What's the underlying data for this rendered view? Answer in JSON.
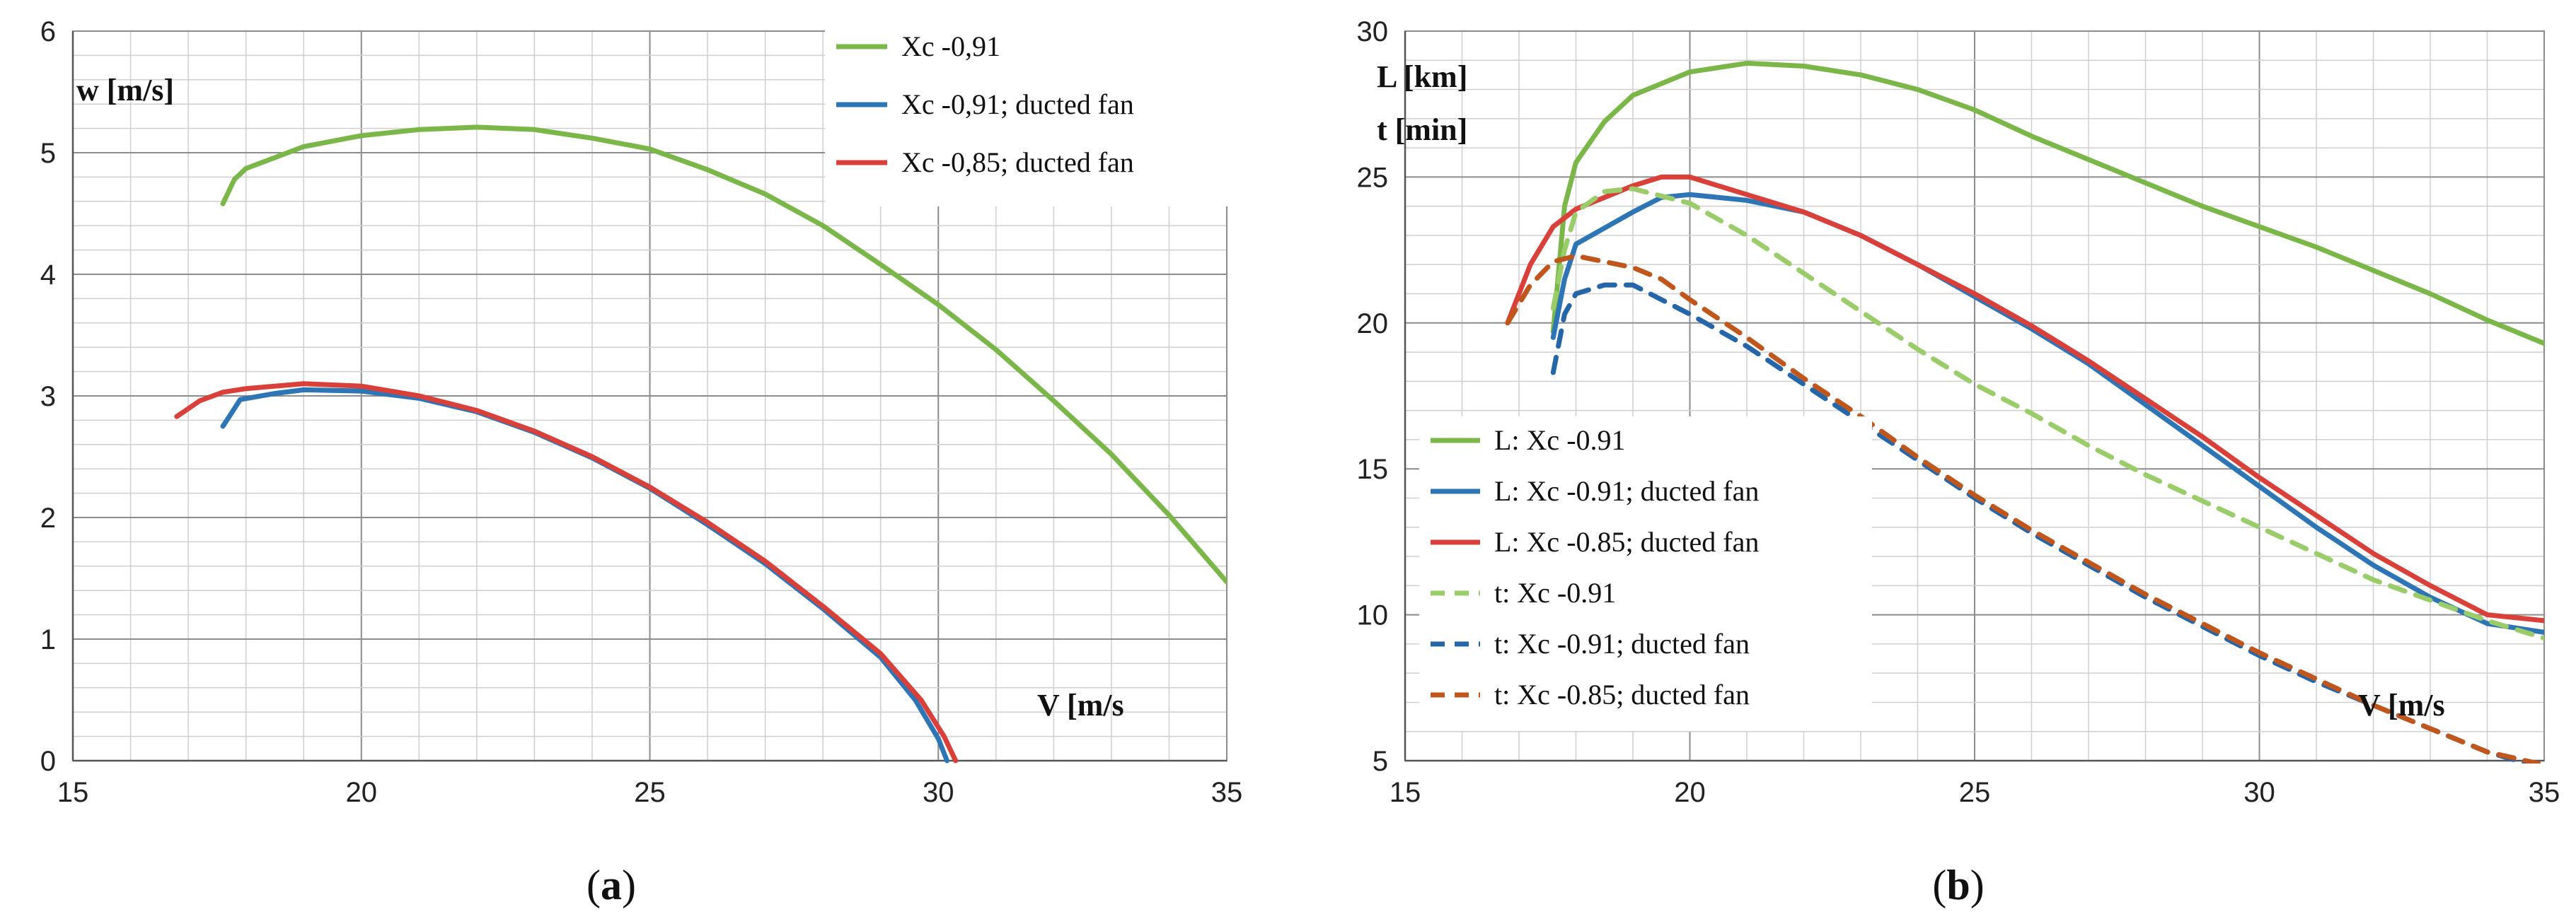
{
  "colors": {
    "green": "#7ab648",
    "blue": "#2e75b6",
    "red": "#d9403a",
    "green_dash": "#9bcc6a",
    "blue_dash": "#2566a8",
    "brown_dash": "#c0561c"
  },
  "chart_data": [
    {
      "id": "a",
      "type": "line",
      "caption_label": "a",
      "xlabel": "V [m/s",
      "ylabel": "w [m/s]",
      "xlim": [
        15,
        35
      ],
      "ylim": [
        0,
        6
      ],
      "x_ticks": [
        "15",
        "20",
        "25",
        "30",
        "35"
      ],
      "y_ticks": [
        "0",
        "1",
        "2",
        "3",
        "4",
        "5",
        "6"
      ],
      "legend_position": "top-right",
      "series": [
        {
          "name": "Xc  -0,91",
          "color": "#7ab648",
          "dash": false,
          "points": [
            [
              17.6,
              4.58
            ],
            [
              17.8,
              4.78
            ],
            [
              18,
              4.87
            ],
            [
              19,
              5.05
            ],
            [
              20,
              5.14
            ],
            [
              21,
              5.19
            ],
            [
              22,
              5.21
            ],
            [
              23,
              5.19
            ],
            [
              24,
              5.12
            ],
            [
              25,
              5.03
            ],
            [
              26,
              4.86
            ],
            [
              27,
              4.66
            ],
            [
              28,
              4.4
            ],
            [
              29,
              4.08
            ],
            [
              30,
              3.75
            ],
            [
              31,
              3.38
            ],
            [
              32,
              2.96
            ],
            [
              33,
              2.52
            ],
            [
              34,
              2.02
            ],
            [
              35,
              1.47
            ]
          ]
        },
        {
          "name": "Xc  -0,91; ducted fan",
          "color": "#2e75b6",
          "dash": false,
          "points": [
            [
              17.6,
              2.75
            ],
            [
              17.75,
              2.86
            ],
            [
              17.9,
              2.97
            ],
            [
              18.5,
              3.02
            ],
            [
              19,
              3.05
            ],
            [
              20,
              3.04
            ],
            [
              21,
              2.98
            ],
            [
              22,
              2.87
            ],
            [
              23,
              2.7
            ],
            [
              24,
              2.49
            ],
            [
              25,
              2.24
            ],
            [
              26,
              1.94
            ],
            [
              27,
              1.62
            ],
            [
              28,
              1.25
            ],
            [
              29,
              0.85
            ],
            [
              29.6,
              0.5
            ],
            [
              30,
              0.18
            ],
            [
              30.15,
              0.0
            ]
          ]
        },
        {
          "name": "Xc  -0,85; ducted fan",
          "color": "#d9403a",
          "dash": false,
          "points": [
            [
              16.8,
              2.83
            ],
            [
              17.2,
              2.96
            ],
            [
              17.6,
              3.03
            ],
            [
              18,
              3.06
            ],
            [
              19,
              3.1
            ],
            [
              20,
              3.08
            ],
            [
              21,
              3.0
            ],
            [
              22,
              2.88
            ],
            [
              23,
              2.71
            ],
            [
              24,
              2.5
            ],
            [
              25,
              2.25
            ],
            [
              26,
              1.96
            ],
            [
              27,
              1.64
            ],
            [
              28,
              1.27
            ],
            [
              29,
              0.88
            ],
            [
              29.7,
              0.5
            ],
            [
              30.1,
              0.2
            ],
            [
              30.3,
              0.0
            ]
          ]
        }
      ]
    },
    {
      "id": "b",
      "type": "line",
      "caption_label": "b",
      "xlabel": "V [m/s",
      "ylabel_lines": [
        "L [km]",
        "t [min]"
      ],
      "xlim": [
        15,
        35
      ],
      "ylim": [
        5,
        30
      ],
      "x_ticks": [
        "15",
        "20",
        "25",
        "30",
        "35"
      ],
      "y_ticks": [
        "5",
        "10",
        "15",
        "20",
        "25",
        "30"
      ],
      "legend_position": "lower-left",
      "series": [
        {
          "name": "L: Xc -0.91",
          "color": "#7ab648",
          "dash": false,
          "points": [
            [
              17.6,
              19.7
            ],
            [
              17.8,
              24.0
            ],
            [
              18,
              25.5
            ],
            [
              18.5,
              26.9
            ],
            [
              19,
              27.8
            ],
            [
              20,
              28.6
            ],
            [
              21,
              28.9
            ],
            [
              22,
              28.8
            ],
            [
              23,
              28.5
            ],
            [
              24,
              28.0
            ],
            [
              25,
              27.3
            ],
            [
              26,
              26.4
            ],
            [
              27,
              25.6
            ],
            [
              28,
              24.8
            ],
            [
              29,
              24.0
            ],
            [
              30,
              23.3
            ],
            [
              31,
              22.6
            ],
            [
              32,
              21.8
            ],
            [
              33,
              21.0
            ],
            [
              34,
              20.1
            ],
            [
              35,
              19.3
            ]
          ]
        },
        {
          "name": "L: Xc -0.91; ducted fan",
          "color": "#2e75b6",
          "dash": false,
          "points": [
            [
              17.6,
              19.5
            ],
            [
              17.8,
              21.5
            ],
            [
              18,
              22.7
            ],
            [
              19,
              23.8
            ],
            [
              19.5,
              24.3
            ],
            [
              20,
              24.4
            ],
            [
              21,
              24.2
            ],
            [
              22,
              23.8
            ],
            [
              23,
              23.0
            ],
            [
              24,
              22.0
            ],
            [
              25,
              20.9
            ],
            [
              26,
              19.8
            ],
            [
              27,
              18.6
            ],
            [
              28,
              17.2
            ],
            [
              29,
              15.8
            ],
            [
              30,
              14.4
            ],
            [
              31,
              13.0
            ],
            [
              32,
              11.7
            ],
            [
              33,
              10.6
            ],
            [
              34,
              9.7
            ],
            [
              35,
              9.4
            ]
          ]
        },
        {
          "name": "L: Xc -0.85; ducted fan",
          "color": "#d9403a",
          "dash": false,
          "points": [
            [
              16.8,
              20.0
            ],
            [
              17.2,
              22.0
            ],
            [
              17.6,
              23.3
            ],
            [
              18,
              23.9
            ],
            [
              19,
              24.7
            ],
            [
              19.5,
              25.0
            ],
            [
              20,
              25.0
            ],
            [
              21,
              24.4
            ],
            [
              22,
              23.8
            ],
            [
              23,
              23.0
            ],
            [
              24,
              22.0
            ],
            [
              25,
              21.0
            ],
            [
              26,
              19.9
            ],
            [
              27,
              18.7
            ],
            [
              28,
              17.4
            ],
            [
              29,
              16.1
            ],
            [
              30,
              14.7
            ],
            [
              31,
              13.4
            ],
            [
              32,
              12.1
            ],
            [
              33,
              11.0
            ],
            [
              34,
              10.0
            ],
            [
              35,
              9.8
            ]
          ]
        },
        {
          "name": "t: Xc -0.91",
          "color": "#9bcc6a",
          "dash": true,
          "points": [
            [
              17.6,
              20.5
            ],
            [
              17.8,
              22.5
            ],
            [
              18,
              23.8
            ],
            [
              18.5,
              24.5
            ],
            [
              19,
              24.6
            ],
            [
              20,
              24.1
            ],
            [
              21,
              23.0
            ],
            [
              22,
              21.7
            ],
            [
              23,
              20.4
            ],
            [
              24,
              19.1
            ],
            [
              25,
              17.9
            ],
            [
              26,
              16.9
            ],
            [
              27,
              15.8
            ],
            [
              28,
              14.8
            ],
            [
              29,
              13.9
            ],
            [
              30,
              13.0
            ],
            [
              31,
              12.1
            ],
            [
              32,
              11.2
            ],
            [
              33,
              10.5
            ],
            [
              34,
              9.8
            ],
            [
              35,
              9.2
            ]
          ]
        },
        {
          "name": "t: Xc -0.91; ducted fan",
          "color": "#2566a8",
          "dash": true,
          "points": [
            [
              17.6,
              18.3
            ],
            [
              17.8,
              20.3
            ],
            [
              18,
              21.0
            ],
            [
              18.5,
              21.3
            ],
            [
              19,
              21.3
            ],
            [
              20,
              20.3
            ],
            [
              21,
              19.2
            ],
            [
              22,
              17.9
            ],
            [
              23,
              16.6
            ],
            [
              24,
              15.3
            ],
            [
              25,
              14.0
            ],
            [
              26,
              12.8
            ],
            [
              27,
              11.7
            ],
            [
              28,
              10.6
            ],
            [
              29,
              9.6
            ],
            [
              30,
              8.6
            ],
            [
              31,
              7.7
            ],
            [
              32,
              6.9
            ],
            [
              33,
              6.1
            ],
            [
              34,
              5.3
            ],
            [
              34.7,
              4.9
            ]
          ]
        },
        {
          "name": "t: Xc -0.85; ducted fan",
          "color": "#c0561c",
          "dash": true,
          "points": [
            [
              16.8,
              20.0
            ],
            [
              17.2,
              21.3
            ],
            [
              17.6,
              22.1
            ],
            [
              18,
              22.3
            ],
            [
              19,
              21.9
            ],
            [
              19.5,
              21.5
            ],
            [
              20,
              20.8
            ],
            [
              21,
              19.5
            ],
            [
              22,
              18.1
            ],
            [
              23,
              16.8
            ],
            [
              24,
              15.4
            ],
            [
              25,
              14.1
            ],
            [
              26,
              12.9
            ],
            [
              27,
              11.8
            ],
            [
              28,
              10.7
            ],
            [
              29,
              9.7
            ],
            [
              30,
              8.7
            ],
            [
              31,
              7.8
            ],
            [
              32,
              6.9
            ],
            [
              33,
              6.1
            ],
            [
              34,
              5.3
            ],
            [
              34.9,
              4.9
            ]
          ]
        }
      ]
    }
  ]
}
